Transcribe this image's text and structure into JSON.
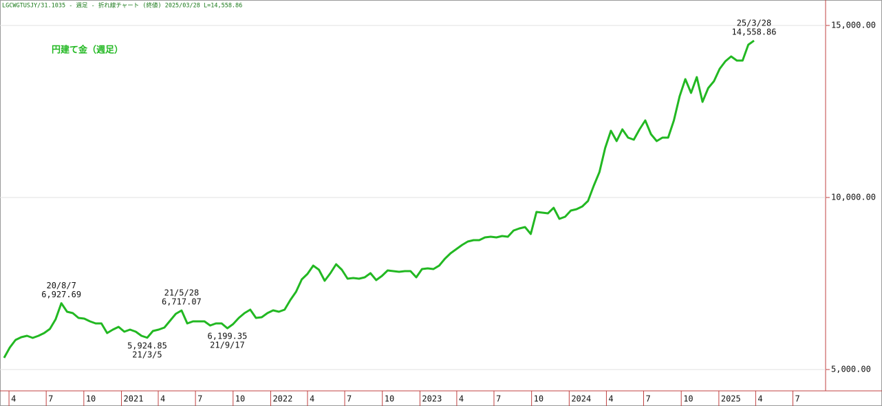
{
  "chart_data": {
    "type": "line",
    "header": "LGCWGTUSJY/31.1035 - 週足 - 折れ線チャート (終値)  2025/03/28 L=14,558.86",
    "title": "円建て金（週足）",
    "x": [
      "2020-03-20",
      "2020-04-03",
      "2020-04-17",
      "2020-05-01",
      "2020-05-15",
      "2020-05-29",
      "2020-06-12",
      "2020-06-26",
      "2020-07-10",
      "2020-07-24",
      "2020-08-07",
      "2020-08-21",
      "2020-09-04",
      "2020-09-18",
      "2020-10-02",
      "2020-10-16",
      "2020-10-30",
      "2020-11-13",
      "2020-11-27",
      "2020-12-11",
      "2020-12-25",
      "2021-01-08",
      "2021-01-22",
      "2021-02-05",
      "2021-02-19",
      "2021-03-05",
      "2021-03-19",
      "2021-04-02",
      "2021-04-16",
      "2021-04-30",
      "2021-05-14",
      "2021-05-28",
      "2021-06-11",
      "2021-06-25",
      "2021-07-09",
      "2021-07-23",
      "2021-08-06",
      "2021-08-20",
      "2021-09-03",
      "2021-09-17",
      "2021-10-01",
      "2021-10-15",
      "2021-10-29",
      "2021-11-12",
      "2021-11-26",
      "2021-12-10",
      "2021-12-24",
      "2022-01-07",
      "2022-01-21",
      "2022-02-04",
      "2022-02-18",
      "2022-03-04",
      "2022-03-18",
      "2022-04-01",
      "2022-04-15",
      "2022-04-29",
      "2022-05-13",
      "2022-05-27",
      "2022-06-10",
      "2022-06-24",
      "2022-07-08",
      "2022-07-22",
      "2022-08-05",
      "2022-08-19",
      "2022-09-02",
      "2022-09-16",
      "2022-09-30",
      "2022-10-14",
      "2022-10-28",
      "2022-11-11",
      "2022-11-25",
      "2022-12-09",
      "2022-12-23",
      "2023-01-06",
      "2023-01-20",
      "2023-02-03",
      "2023-02-17",
      "2023-03-03",
      "2023-03-17",
      "2023-03-31",
      "2023-04-14",
      "2023-04-28",
      "2023-05-12",
      "2023-05-26",
      "2023-06-09",
      "2023-06-23",
      "2023-07-07",
      "2023-07-21",
      "2023-08-04",
      "2023-08-18",
      "2023-09-01",
      "2023-09-15",
      "2023-09-29",
      "2023-10-13",
      "2023-10-27",
      "2023-11-10",
      "2023-11-24",
      "2023-12-08",
      "2023-12-22",
      "2024-01-05",
      "2024-01-19",
      "2024-02-02",
      "2024-02-16",
      "2024-03-01",
      "2024-03-15",
      "2024-03-29",
      "2024-04-12",
      "2024-04-26",
      "2024-05-10",
      "2024-05-24",
      "2024-06-07",
      "2024-06-21",
      "2024-07-05",
      "2024-07-19",
      "2024-08-02",
      "2024-08-16",
      "2024-08-30",
      "2024-09-13",
      "2024-09-27",
      "2024-10-11",
      "2024-10-25",
      "2024-11-08",
      "2024-11-22",
      "2024-12-06",
      "2024-12-20",
      "2025-01-03",
      "2025-01-17",
      "2025-01-31",
      "2025-02-14",
      "2025-02-28",
      "2025-03-14",
      "2025-03-28"
    ],
    "series": [
      {
        "color": "#22b822",
        "values": [
          5340,
          5640,
          5860,
          5940,
          5980,
          5920,
          5980,
          6060,
          6180,
          6460,
          6927.69,
          6680,
          6640,
          6500,
          6480,
          6400,
          6340,
          6340,
          6060,
          6160,
          6240,
          6100,
          6160,
          6100,
          5980,
          5924.85,
          6120,
          6160,
          6220,
          6420,
          6620,
          6717.07,
          6340,
          6400,
          6400,
          6400,
          6280,
          6340,
          6340,
          6199.35,
          6320,
          6500,
          6640,
          6740,
          6500,
          6520,
          6640,
          6720,
          6680,
          6740,
          7020,
          7260,
          7620,
          7780,
          8020,
          7900,
          7580,
          7800,
          8060,
          7900,
          7640,
          7660,
          7640,
          7680,
          7800,
          7600,
          7720,
          7880,
          7860,
          7840,
          7860,
          7860,
          7680,
          7920,
          7940,
          7920,
          8020,
          8220,
          8380,
          8500,
          8620,
          8720,
          8760,
          8760,
          8840,
          8860,
          8840,
          8880,
          8860,
          9040,
          9100,
          9140,
          8940,
          9580,
          9560,
          9540,
          9700,
          9380,
          9440,
          9620,
          9660,
          9740,
          9900,
          10340,
          10740,
          11440,
          11940,
          11640,
          11980,
          11740,
          11680,
          11980,
          12240,
          11840,
          11640,
          11740,
          11740,
          12240,
          12940,
          13440,
          13040,
          13500,
          12780,
          13180,
          13380,
          13740,
          13960,
          14100,
          13980,
          13980,
          14440,
          14558.86
        ]
      }
    ],
    "annotations": [
      {
        "x": "2020-08-07",
        "position": "above",
        "lines": [
          "20/8/7",
          "6,927.69"
        ]
      },
      {
        "x": "2021-03-05",
        "position": "below",
        "lines": [
          "5,924.85",
          "21/3/5"
        ]
      },
      {
        "x": "2021-05-28",
        "position": "above",
        "lines": [
          "21/5/28",
          "6,717.07"
        ]
      },
      {
        "x": "2021-09-17",
        "position": "below",
        "lines": [
          "6,199.35",
          "21/9/17"
        ]
      },
      {
        "x": "2025-03-28",
        "position": "above",
        "lines": [
          "25/3/28",
          "14,558.86"
        ]
      }
    ],
    "xlim": [
      "2020-03-10",
      "2025-09-19"
    ],
    "xticks": [
      {
        "value": "2020-04-01",
        "label": "4"
      },
      {
        "value": "2020-07-01",
        "label": "7"
      },
      {
        "value": "2020-10-01",
        "label": "10"
      },
      {
        "value": "2021-01-01",
        "label": "2021"
      },
      {
        "value": "2021-04-01",
        "label": "4"
      },
      {
        "value": "2021-07-01",
        "label": "7"
      },
      {
        "value": "2021-10-01",
        "label": "10"
      },
      {
        "value": "2022-01-01",
        "label": "2022"
      },
      {
        "value": "2022-04-01",
        "label": "4"
      },
      {
        "value": "2022-07-01",
        "label": "7"
      },
      {
        "value": "2022-10-01",
        "label": "10"
      },
      {
        "value": "2023-01-01",
        "label": "2023"
      },
      {
        "value": "2023-04-01",
        "label": "4"
      },
      {
        "value": "2023-07-01",
        "label": "7"
      },
      {
        "value": "2023-10-01",
        "label": "10"
      },
      {
        "value": "2024-01-01",
        "label": "2024"
      },
      {
        "value": "2024-04-01",
        "label": "4"
      },
      {
        "value": "2024-07-01",
        "label": "7"
      },
      {
        "value": "2024-10-01",
        "label": "10"
      },
      {
        "value": "2025-01-01",
        "label": "2025"
      },
      {
        "value": "2025-04-01",
        "label": "4"
      },
      {
        "value": "2025-07-01",
        "label": "7"
      }
    ],
    "ylim": [
      4380,
      15740
    ],
    "yticks": [
      {
        "value": 5000,
        "label": "5,000.00"
      },
      {
        "value": 10000,
        "label": "10,000.00"
      },
      {
        "value": 15000,
        "label": "15,000.00"
      }
    ],
    "grid": true
  }
}
